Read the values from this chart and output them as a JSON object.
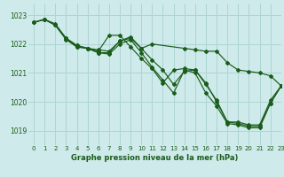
{
  "title": "Graphe pression niveau de la mer (hPa)",
  "background_color": "#ceeaea",
  "grid_color": "#aed4d4",
  "line_color": "#1a5c1a",
  "xlim": [
    -0.5,
    23
  ],
  "ylim": [
    1018.5,
    1023.4
  ],
  "yticks": [
    1019,
    1020,
    1021,
    1022,
    1023
  ],
  "xticks": [
    0,
    1,
    2,
    3,
    4,
    5,
    6,
    7,
    8,
    9,
    10,
    11,
    12,
    13,
    14,
    15,
    16,
    17,
    18,
    19,
    20,
    21,
    22,
    23
  ],
  "line_A": {
    "x": [
      0,
      1,
      2,
      3,
      4,
      5,
      6,
      7,
      8,
      9,
      10,
      11,
      14,
      15,
      16,
      17,
      18,
      19,
      20,
      21,
      22,
      23
    ],
    "y": [
      1022.75,
      1022.85,
      1022.7,
      1022.2,
      1021.95,
      1021.85,
      1021.8,
      1021.75,
      1022.1,
      1022.2,
      1021.85,
      1022.0,
      1021.85,
      1021.8,
      1021.75,
      1021.75,
      1021.35,
      1021.1,
      1021.05,
      1021.0,
      1020.9,
      1020.55
    ]
  },
  "line_B": {
    "x": [
      0,
      1,
      2,
      3,
      4,
      5,
      6,
      7,
      8,
      9,
      10,
      11,
      12,
      13,
      14,
      15,
      16,
      17,
      18,
      19,
      20,
      21,
      22,
      23
    ],
    "y": [
      1022.75,
      1022.85,
      1022.65,
      1022.15,
      1021.9,
      1021.85,
      1021.7,
      1021.65,
      1022.0,
      1022.15,
      1021.7,
      1021.2,
      1020.75,
      1020.3,
      1021.1,
      1021.0,
      1020.3,
      1019.85,
      1019.25,
      1019.2,
      1019.1,
      1019.1,
      1019.95,
      1020.55
    ]
  },
  "line_C": {
    "x": [
      0,
      1,
      2,
      3,
      4,
      5,
      6,
      7,
      8,
      9,
      10,
      11,
      12,
      13,
      14,
      15,
      16,
      17,
      18,
      19,
      20,
      21,
      22,
      23
    ],
    "y": [
      1022.75,
      1022.85,
      1022.65,
      1022.2,
      1021.95,
      1021.85,
      1021.7,
      1021.7,
      1022.1,
      1022.25,
      1021.85,
      1021.45,
      1021.1,
      1020.6,
      1021.05,
      1021.1,
      1020.6,
      1020.05,
      1019.3,
      1019.25,
      1019.15,
      1019.15,
      1019.95,
      1020.55
    ]
  },
  "line_D": {
    "x": [
      3,
      4,
      5,
      6,
      7,
      8,
      9,
      10,
      11,
      12,
      13,
      14,
      15,
      16,
      17,
      18,
      19,
      20,
      21,
      22,
      23
    ],
    "y": [
      1022.2,
      1021.9,
      1021.85,
      1021.75,
      1022.3,
      1022.3,
      1021.9,
      1021.5,
      1021.15,
      1020.65,
      1021.1,
      1021.15,
      1021.1,
      1020.65,
      1020.0,
      1019.3,
      1019.3,
      1019.2,
      1019.2,
      1020.05,
      1020.55
    ]
  }
}
